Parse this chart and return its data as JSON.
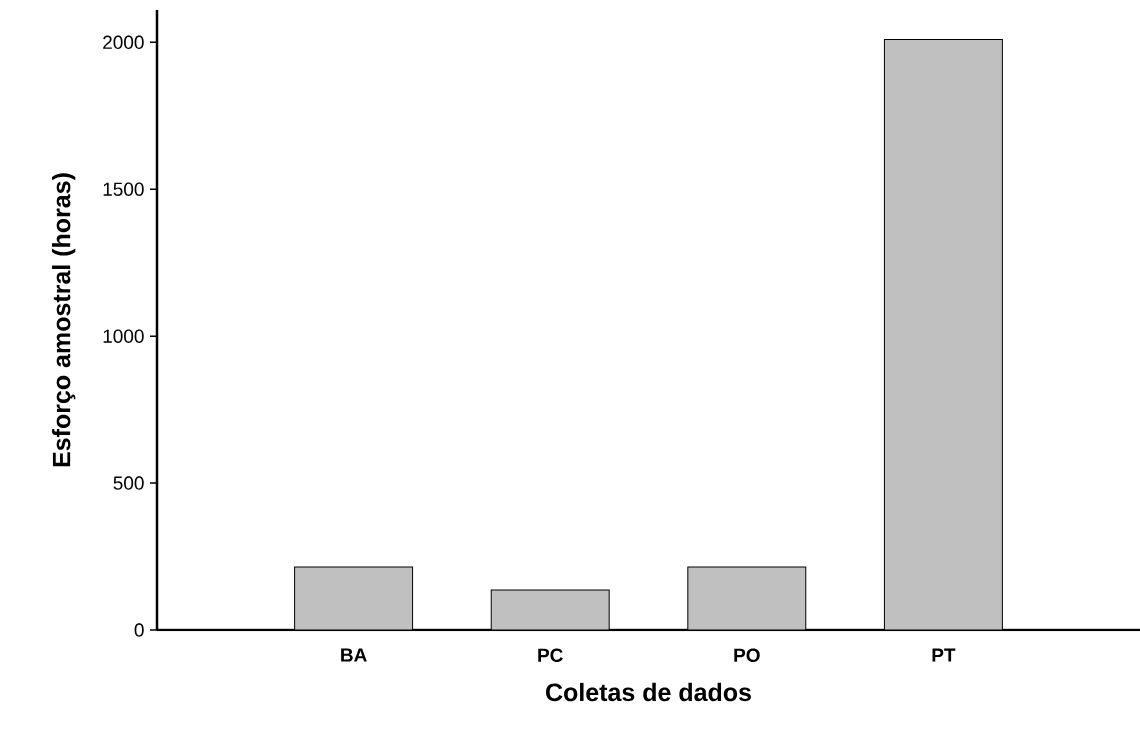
{
  "chart_data": {
    "type": "bar",
    "xlabel": "Coletas de dados",
    "ylabel": "Esforço amostral (horas)",
    "categories": [
      "BA",
      "PC",
      "PO",
      "PT"
    ],
    "values": [
      214,
      136,
      214,
      2010
    ],
    "color": "#c0c0c0",
    "ylim": [
      0,
      2110
    ],
    "yticks": [
      0,
      500,
      1000,
      1500,
      2000
    ],
    "grid": false
  }
}
